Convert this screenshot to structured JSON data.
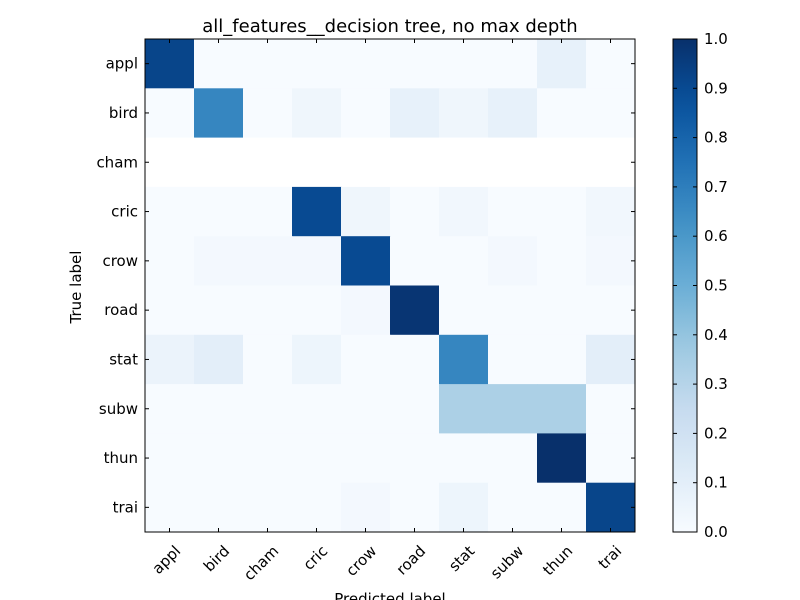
{
  "chart_data": {
    "type": "heatmap",
    "title": "all_features__decision tree, no max depth",
    "xlabel": "Predicted label",
    "ylabel": "True label",
    "x_categories": [
      "appl",
      "bird",
      "cham",
      "cric",
      "crow",
      "road",
      "stat",
      "subw",
      "thun",
      "trai"
    ],
    "y_categories": [
      "appl",
      "bird",
      "cham",
      "cric",
      "crow",
      "road",
      "stat",
      "subw",
      "thun",
      "trai"
    ],
    "colormap": "Blues",
    "colorbar_range": [
      0.0,
      1.0
    ],
    "colorbar_ticks": [
      "0.0",
      "0.1",
      "0.2",
      "0.3",
      "0.4",
      "0.5",
      "0.6",
      "0.7",
      "0.8",
      "0.9",
      "1.0"
    ],
    "values": [
      [
        0.92,
        0.0,
        0.0,
        0.0,
        0.0,
        0.0,
        0.0,
        0.0,
        0.08,
        0.0
      ],
      [
        0.0,
        0.67,
        0.0,
        0.04,
        0.0,
        0.08,
        0.04,
        0.08,
        0.0,
        0.0
      ],
      [
        null,
        null,
        null,
        null,
        null,
        null,
        null,
        null,
        null,
        null
      ],
      [
        0.0,
        0.0,
        0.0,
        0.9,
        0.04,
        0.0,
        0.03,
        0.0,
        0.0,
        0.03
      ],
      [
        0.0,
        0.02,
        0.02,
        0.02,
        0.9,
        0.0,
        0.0,
        0.02,
        0.0,
        0.02
      ],
      [
        0.0,
        0.0,
        0.0,
        0.0,
        0.02,
        0.98,
        0.0,
        0.0,
        0.0,
        0.0
      ],
      [
        0.06,
        0.1,
        0.0,
        0.05,
        0.0,
        0.0,
        0.67,
        0.0,
        0.0,
        0.1
      ],
      [
        0.0,
        0.0,
        0.0,
        0.0,
        0.0,
        0.0,
        0.33,
        0.33,
        0.33,
        0.0
      ],
      [
        0.0,
        0.0,
        0.0,
        0.0,
        0.0,
        0.0,
        0.0,
        0.0,
        1.0,
        0.0
      ],
      [
        0.0,
        0.0,
        0.0,
        0.0,
        0.02,
        0.0,
        0.05,
        0.0,
        0.0,
        0.92
      ]
    ]
  }
}
